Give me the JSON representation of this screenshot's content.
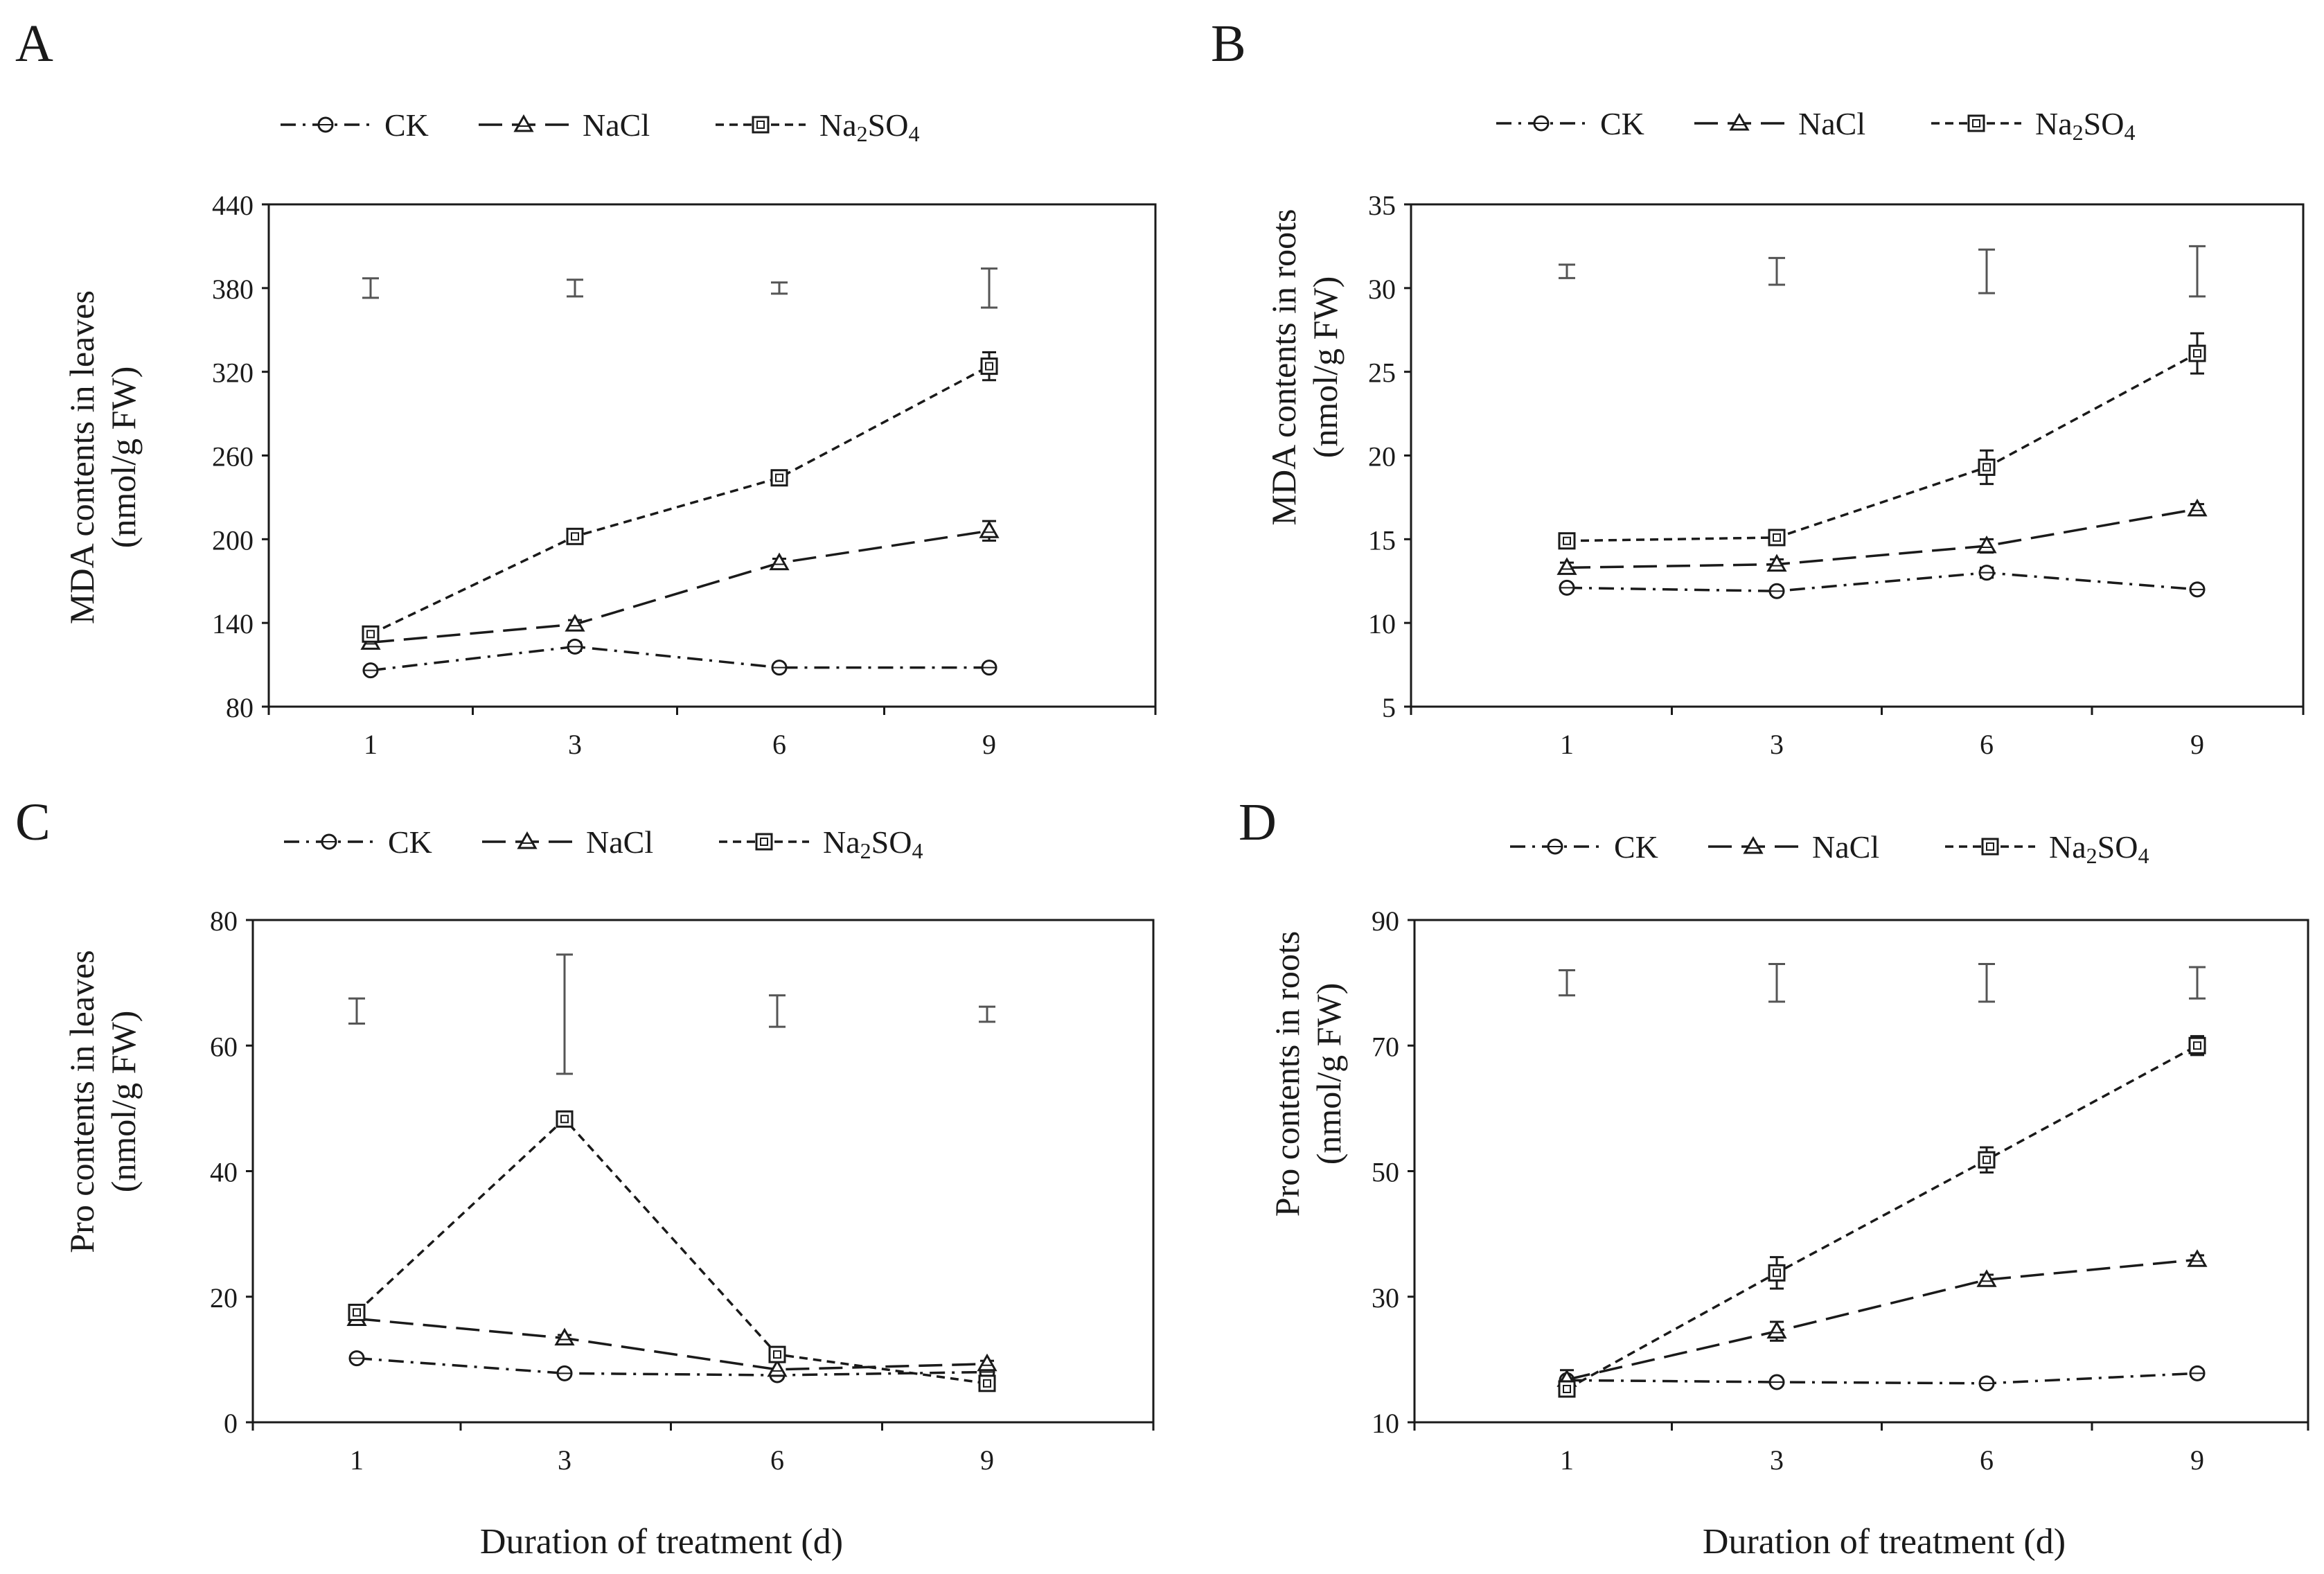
{
  "figure": {
    "xlabel_bottom": "Duration of treatment (d)"
  },
  "chart_data": [
    {
      "panel": "A",
      "type": "line",
      "categories": [
        "1",
        "3",
        "6",
        "9"
      ],
      "ylabel": "MDA contents in leaves",
      "ylabel_unit": "(nmol/g FW)",
      "ylim": [
        80,
        440
      ],
      "yticks": [
        80,
        140,
        200,
        260,
        320,
        380,
        440
      ],
      "series": [
        {
          "name": "CK",
          "marker": "circle",
          "dash": "dashdot",
          "values": [
            106,
            123,
            108,
            108
          ],
          "errors": [
            2,
            3,
            2,
            2
          ]
        },
        {
          "name": "NaCl",
          "marker": "triangle",
          "dash": "longdash",
          "values": [
            126,
            139,
            183,
            206
          ],
          "errors": [
            3,
            3,
            3,
            7
          ]
        },
        {
          "name": "Na2SO4",
          "marker": "square",
          "dash": "shortdash",
          "values": [
            132,
            202,
            244,
            324
          ],
          "errors": [
            3,
            3,
            3,
            10
          ]
        }
      ],
      "legend_labels": [
        "CK",
        "NaCl",
        "Na2SO4"
      ],
      "sig_bars": [
        {
          "y": 380,
          "err": 7
        },
        {
          "y": 380,
          "err": 6
        },
        {
          "y": 380,
          "err": 4
        },
        {
          "y": 380,
          "err": 14
        }
      ]
    },
    {
      "panel": "B",
      "type": "line",
      "categories": [
        "1",
        "3",
        "6",
        "9"
      ],
      "ylabel": "MDA contents in roots",
      "ylabel_unit": "(nmol/g FW)",
      "ylim": [
        5,
        35
      ],
      "yticks": [
        5,
        10,
        15,
        20,
        25,
        30,
        35
      ],
      "series": [
        {
          "name": "CK",
          "marker": "circle",
          "dash": "dashdot",
          "values": [
            12.1,
            11.9,
            13.0,
            12.0
          ],
          "errors": [
            0.2,
            0.2,
            0.3,
            0.2
          ]
        },
        {
          "name": "NaCl",
          "marker": "triangle",
          "dash": "longdash",
          "values": [
            13.3,
            13.5,
            14.6,
            16.8
          ],
          "errors": [
            0.3,
            0.3,
            0.4,
            0.3
          ]
        },
        {
          "name": "Na2SO4",
          "marker": "square",
          "dash": "shortdash",
          "values": [
            14.9,
            15.1,
            19.3,
            26.1
          ],
          "errors": [
            0.3,
            0.3,
            1.0,
            1.2
          ]
        }
      ],
      "legend_labels": [
        "CK",
        "NaCl",
        "Na2SO4"
      ],
      "sig_bars": [
        {
          "y": 31.0,
          "err": 0.4
        },
        {
          "y": 31.0,
          "err": 0.8
        },
        {
          "y": 31.0,
          "err": 1.3
        },
        {
          "y": 31.0,
          "err": 1.5
        }
      ]
    },
    {
      "panel": "C",
      "type": "line",
      "categories": [
        "1",
        "3",
        "6",
        "9"
      ],
      "ylabel": "Pro contents in leaves",
      "ylabel_unit": "(nmol/g FW)",
      "ylim": [
        0,
        80
      ],
      "yticks": [
        0,
        20,
        40,
        60,
        80
      ],
      "series": [
        {
          "name": "CK",
          "marker": "circle",
          "dash": "dashdot",
          "values": [
            10.2,
            7.8,
            7.5,
            8.0
          ],
          "errors": [
            0.4,
            0.3,
            0.5,
            0.3
          ]
        },
        {
          "name": "NaCl",
          "marker": "triangle",
          "dash": "longdash",
          "values": [
            16.5,
            13.4,
            8.4,
            9.3
          ],
          "errors": [
            0.8,
            0.5,
            0.4,
            0.5
          ]
        },
        {
          "name": "Na2SO4",
          "marker": "square",
          "dash": "shortdash",
          "values": [
            17.5,
            48.3,
            10.8,
            6.2
          ],
          "errors": [
            0.6,
            0.8,
            0.6,
            0.4
          ]
        }
      ],
      "legend_labels": [
        "CK",
        "NaCl",
        "Na2SO4"
      ],
      "sig_bars": [
        {
          "y": 65.5,
          "err": 2.0
        },
        {
          "y": 65.0,
          "err": 9.5
        },
        {
          "y": 65.5,
          "err": 2.5
        },
        {
          "y": 65.0,
          "err": 1.2
        }
      ]
    },
    {
      "panel": "D",
      "type": "line",
      "categories": [
        "1",
        "3",
        "6",
        "9"
      ],
      "ylabel": "Pro contents in roots",
      "ylabel_unit": "(nmol/g FW)",
      "ylim": [
        10,
        90
      ],
      "yticks": [
        10,
        30,
        50,
        70,
        90
      ],
      "series": [
        {
          "name": "CK",
          "marker": "circle",
          "dash": "dashdot",
          "values": [
            16.7,
            16.4,
            16.2,
            17.8
          ],
          "errors": [
            0.4,
            0.4,
            0.4,
            0.4
          ]
        },
        {
          "name": "NaCl",
          "marker": "triangle",
          "dash": "longdash",
          "values": [
            16.8,
            24.5,
            32.7,
            35.9
          ],
          "errors": [
            1.5,
            1.5,
            0.8,
            0.7
          ]
        },
        {
          "name": "Na2SO4",
          "marker": "square",
          "dash": "shortdash",
          "values": [
            15.3,
            33.8,
            51.8,
            70.0
          ],
          "errors": [
            1.0,
            2.5,
            2.0,
            1.5
          ]
        }
      ],
      "legend_labels": [
        "CK",
        "NaCl",
        "Na2SO4"
      ],
      "sig_bars": [
        {
          "y": 80.0,
          "err": 2.0
        },
        {
          "y": 80.0,
          "err": 3.0
        },
        {
          "y": 80.0,
          "err": 3.0
        },
        {
          "y": 80.0,
          "err": 2.5
        }
      ]
    }
  ]
}
